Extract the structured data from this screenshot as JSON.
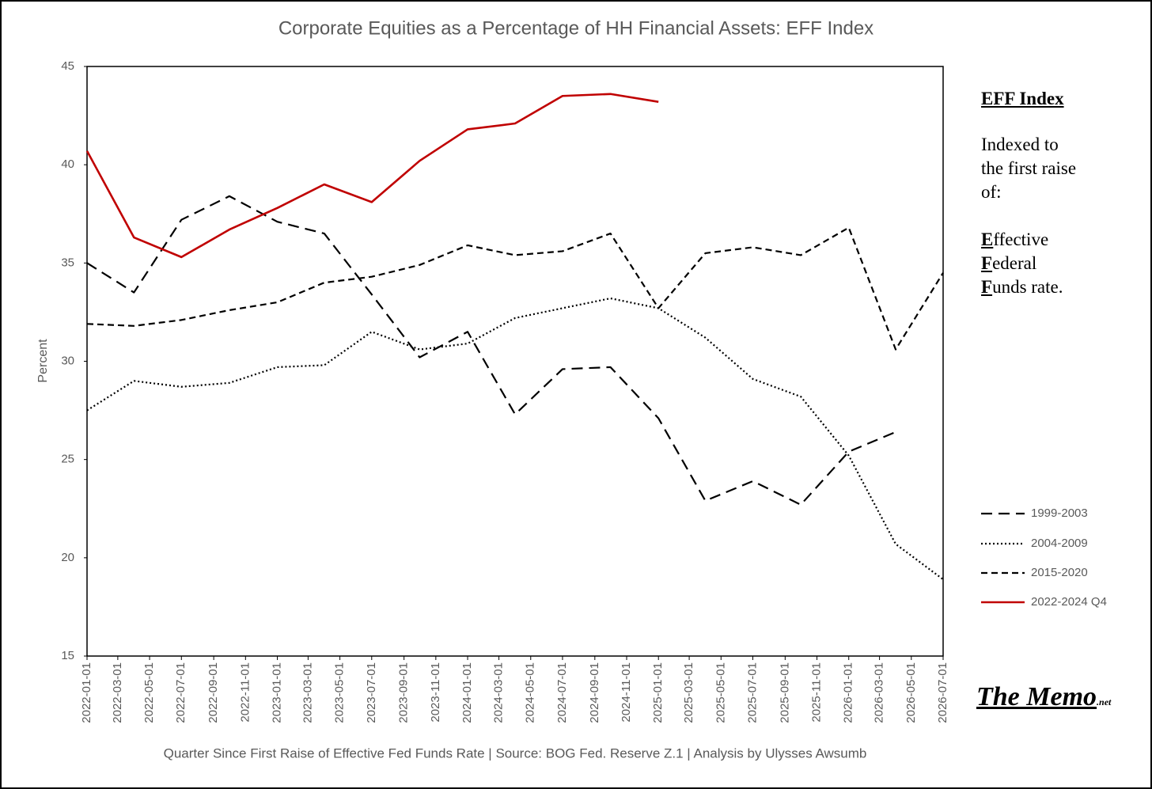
{
  "chart_data": {
    "type": "line",
    "title": "Corporate Equities as a Percentage of HH Financial Assets: EFF Index",
    "x_label": "Quarter Since First Raise of Effective Fed Funds Rate  |  Source: BOG Fed. Reserve Z.1  |  Analysis by Ulysses Awsumb",
    "y_label": "Percent",
    "x": [
      "2022-01-01",
      "2022-04-01",
      "2022-07-01",
      "2022-10-01",
      "2023-01-01",
      "2023-04-01",
      "2023-07-01",
      "2023-10-01",
      "2024-01-01",
      "2024-04-01",
      "2024-07-01",
      "2024-10-01",
      "2025-01-01",
      "2025-04-01",
      "2025-07-01",
      "2025-10-01",
      "2026-01-01",
      "2026-04-01",
      "2026-07-01"
    ],
    "series": [
      {
        "name": "1999-2003",
        "color": "#000000",
        "dash": "long",
        "values": [
          35.0,
          33.5,
          37.2,
          38.4,
          37.1,
          36.5,
          33.4,
          30.2,
          31.5,
          27.3,
          29.6,
          29.7,
          27.1,
          22.9,
          23.9,
          22.7,
          25.4,
          26.4,
          null
        ]
      },
      {
        "name": "2004-2009",
        "color": "#000000",
        "dash": "dot",
        "values": [
          27.5,
          29.0,
          28.7,
          28.9,
          29.7,
          29.8,
          31.5,
          30.6,
          30.9,
          32.2,
          32.7,
          33.2,
          32.7,
          31.2,
          29.1,
          28.2,
          25.2,
          20.7,
          18.9
        ]
      },
      {
        "name": "2015-2020",
        "color": "#000000",
        "dash": "short",
        "values": [
          31.9,
          31.8,
          32.1,
          32.6,
          33.0,
          34.0,
          34.3,
          34.9,
          35.9,
          35.4,
          35.6,
          36.5,
          32.7,
          35.5,
          35.8,
          35.4,
          36.8,
          30.6,
          34.5
        ]
      },
      {
        "name": "2022-2024 Q4",
        "color": "#c00000",
        "dash": "solid",
        "values": [
          40.7,
          36.3,
          35.3,
          36.7,
          37.8,
          39.0,
          38.1,
          40.2,
          41.8,
          42.1,
          43.5,
          43.6,
          43.2,
          null,
          null,
          null,
          null,
          null,
          null
        ]
      }
    ],
    "xlim": [
      "2022-01-01",
      "2026-07-01"
    ],
    "xticks": [
      "2022-01-01",
      "2022-03-01",
      "2022-05-01",
      "2022-07-01",
      "2022-09-01",
      "2022-11-01",
      "2023-01-01",
      "2023-03-01",
      "2023-05-01",
      "2023-07-01",
      "2023-09-01",
      "2023-11-01",
      "2024-01-01",
      "2024-03-01",
      "2024-05-01",
      "2024-07-01",
      "2024-09-01",
      "2024-11-01",
      "2025-01-01",
      "2025-03-01",
      "2025-05-01",
      "2025-07-01",
      "2025-09-01",
      "2025-11-01",
      "2026-01-01",
      "2026-03-01",
      "2026-05-01",
      "2026-07-01"
    ],
    "ylim": [
      15,
      45
    ],
    "yticks": [
      15,
      20,
      25,
      30,
      35,
      40,
      45
    ],
    "grid": false,
    "legend_position": "right",
    "panel": {
      "heading": "EFF Index",
      "note_lines": [
        "Indexed to",
        "the first raise",
        "of:"
      ],
      "acronym_lines": [
        "Effective",
        "Federal",
        "Funds rate."
      ]
    },
    "logo": {
      "main": "The Memo",
      "sub": ".net"
    }
  }
}
